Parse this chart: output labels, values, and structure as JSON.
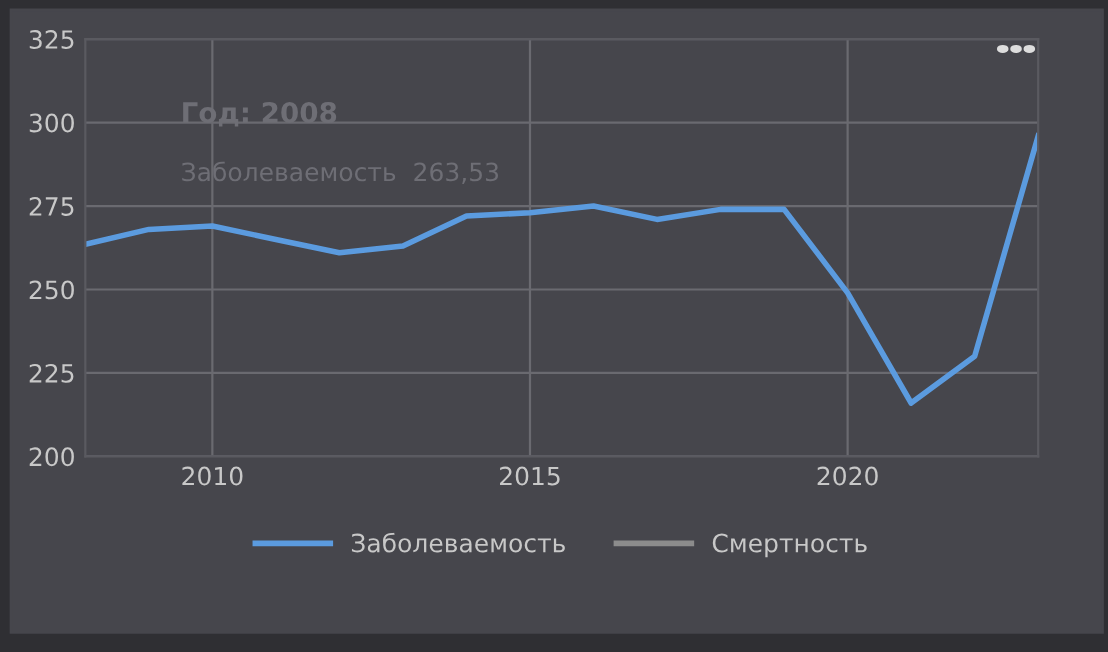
{
  "chart_data": {
    "type": "line",
    "x": [
      2008,
      2009,
      2010,
      2011,
      2012,
      2013,
      2014,
      2015,
      2016,
      2017,
      2018,
      2019,
      2020,
      2021,
      2022,
      2023
    ],
    "series": [
      {
        "name": "Заболеваемость",
        "color": "#5b9bdf",
        "values": [
          263.53,
          268,
          269,
          265,
          261,
          263,
          272,
          273,
          275,
          271,
          274,
          274,
          249,
          216,
          230,
          296
        ]
      },
      {
        "name": "Смертность",
        "color": "#8c8c8c",
        "values": [
          null,
          null,
          null,
          null,
          null,
          null,
          null,
          null,
          null,
          null,
          null,
          null,
          null,
          null,
          null,
          null
        ]
      }
    ],
    "xlim": [
      2008,
      2023
    ],
    "xticks": [
      2010,
      2015,
      2020
    ],
    "ylim": [
      200,
      325
    ],
    "yticks": [
      200,
      225,
      250,
      275,
      300,
      325
    ],
    "grid": true,
    "legend": "bottom",
    "marker": "none",
    "line_style": "solid",
    "annotations": [
      "Год: 2008",
      "Заболеваемость  263,53"
    ]
  }
}
